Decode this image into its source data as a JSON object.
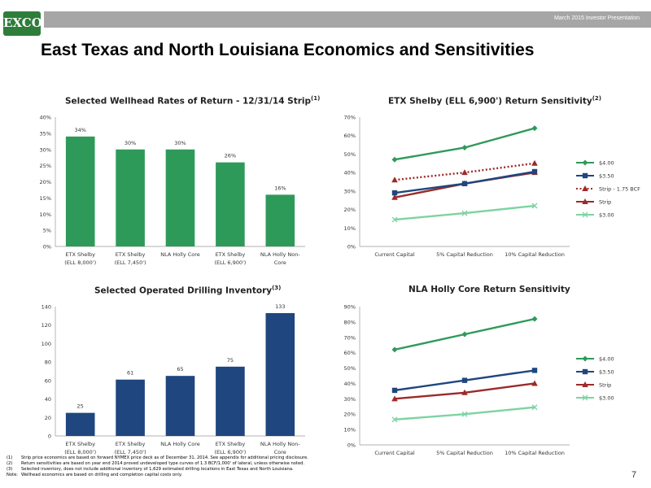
{
  "header": {
    "logo_text": "EXCO",
    "presentation": "March 2015 Investor Presentation",
    "title": "East Texas and North Louisiana Economics and Sensitivities",
    "bar_color": "#a6a6a6"
  },
  "colors": {
    "green_bar": "#2e9a5a",
    "navy_bar": "#1f467e",
    "s400": "#2e9a5a",
    "s350": "#1f467e",
    "strip": "#9b2a2a",
    "s300": "#7dd3a2"
  },
  "chart_data": [
    {
      "type": "bar",
      "title": "Selected Wellhead Rates of Return - 12/31/14 Strip",
      "title_note": "(1)",
      "categories": [
        [
          "ETX Shelby",
          "(ELL 8,000')"
        ],
        [
          "ETX Shelby",
          "(ELL 7,450')"
        ],
        [
          "NLA Holly Core",
          ""
        ],
        [
          "ETX Shelby",
          "(ELL 6,900')"
        ],
        [
          "NLA Holly Non-",
          "Core"
        ]
      ],
      "values": [
        34,
        30,
        30,
        26,
        16
      ],
      "value_labels": [
        "34%",
        "30%",
        "30%",
        "26%",
        "16%"
      ],
      "y_ticks": [
        "0%",
        "5%",
        "10%",
        "15%",
        "20%",
        "25%",
        "30%",
        "35%",
        "40%"
      ],
      "ylim": [
        0,
        40
      ],
      "color": "#2e9a5a"
    },
    {
      "type": "line",
      "title": "ETX Shelby (ELL 6,900') Return Sensitivity",
      "title_note": "(2)",
      "categories": [
        "Current Capital",
        "5% Capital Reduction",
        "10% Capital Reduction"
      ],
      "y_ticks": [
        "0%",
        "10%",
        "20%",
        "30%",
        "40%",
        "50%",
        "60%",
        "70%"
      ],
      "ylim": [
        0,
        70
      ],
      "legend_position": "right",
      "series": [
        {
          "name": "$4.00",
          "values": [
            47,
            53.5,
            64
          ],
          "color": "#2e9a5a",
          "marker": "diamond",
          "dash": false
        },
        {
          "name": "$3.50",
          "values": [
            29,
            34,
            40.5
          ],
          "color": "#1f467e",
          "marker": "square",
          "dash": false
        },
        {
          "name": "Strip - 1.75 BCF",
          "values": [
            36,
            40,
            45
          ],
          "color": "#9b2a2a",
          "marker": "triangle",
          "dash": true
        },
        {
          "name": "Strip",
          "values": [
            26.5,
            34,
            40
          ],
          "color": "#9b2a2a",
          "marker": "triangle",
          "dash": false
        },
        {
          "name": "$3.00",
          "values": [
            14.5,
            18,
            22
          ],
          "color": "#7dd3a2",
          "marker": "x",
          "dash": false
        }
      ]
    },
    {
      "type": "bar",
      "title": "Selected Operated Drilling Inventory",
      "title_note": "(3)",
      "categories": [
        [
          "ETX Shelby",
          "(ELL 8,000')"
        ],
        [
          "ETX Shelby",
          "(ELL 7,450')"
        ],
        [
          "NLA Holly Core",
          ""
        ],
        [
          "ETX Shelby",
          "(ELL 6,900')"
        ],
        [
          "NLA Holly Non-",
          "Core"
        ]
      ],
      "values": [
        25,
        61,
        65,
        75,
        133
      ],
      "value_labels": [
        "25",
        "61",
        "65",
        "75",
        "133"
      ],
      "y_ticks": [
        "0",
        "20",
        "40",
        "60",
        "80",
        "100",
        "120",
        "140"
      ],
      "ylim": [
        0,
        140
      ],
      "color": "#1f467e"
    },
    {
      "type": "line",
      "title": "NLA Holly Core Return Sensitivity",
      "title_note": "",
      "categories": [
        "Current Capital",
        "5% Capital Reduction",
        "10% Capital Reduction"
      ],
      "y_ticks": [
        "0%",
        "10%",
        "20%",
        "30%",
        "40%",
        "50%",
        "60%",
        "70%",
        "80%",
        "90%"
      ],
      "ylim": [
        0,
        90
      ],
      "legend_position": "right",
      "series": [
        {
          "name": "$4.00",
          "values": [
            62,
            72,
            82
          ],
          "color": "#2e9a5a",
          "marker": "diamond",
          "dash": false
        },
        {
          "name": "$3.50",
          "values": [
            35.5,
            42,
            48.5
          ],
          "color": "#1f467e",
          "marker": "square",
          "dash": false
        },
        {
          "name": "Strip",
          "values": [
            30,
            34,
            40
          ],
          "color": "#9b2a2a",
          "marker": "triangle",
          "dash": false
        },
        {
          "name": "$3.00",
          "values": [
            16.5,
            20,
            24.5
          ],
          "color": "#7dd3a2",
          "marker": "x",
          "dash": false
        }
      ]
    }
  ],
  "footnotes": [
    {
      "num": "(1)",
      "text": "Strip price economics are based on forward NYMEX price deck as of December 31, 2014.  See appendix for additional pricing disclosure."
    },
    {
      "num": "(2)",
      "text": "Return sensitivities are based on year end 2014 proved undeveloped type curves of 1.3 BCF/1,000' of lateral, unless otherwise noted."
    },
    {
      "num": "(3)",
      "text": "Selected inventory, does not include additional inventory of 1,629 estimated drilling locations in East Texas and North Louisiana."
    },
    {
      "num": "Note:",
      "text": "Wellhead economics are based on drilling and completion capital costs only."
    }
  ],
  "page_number": "7"
}
